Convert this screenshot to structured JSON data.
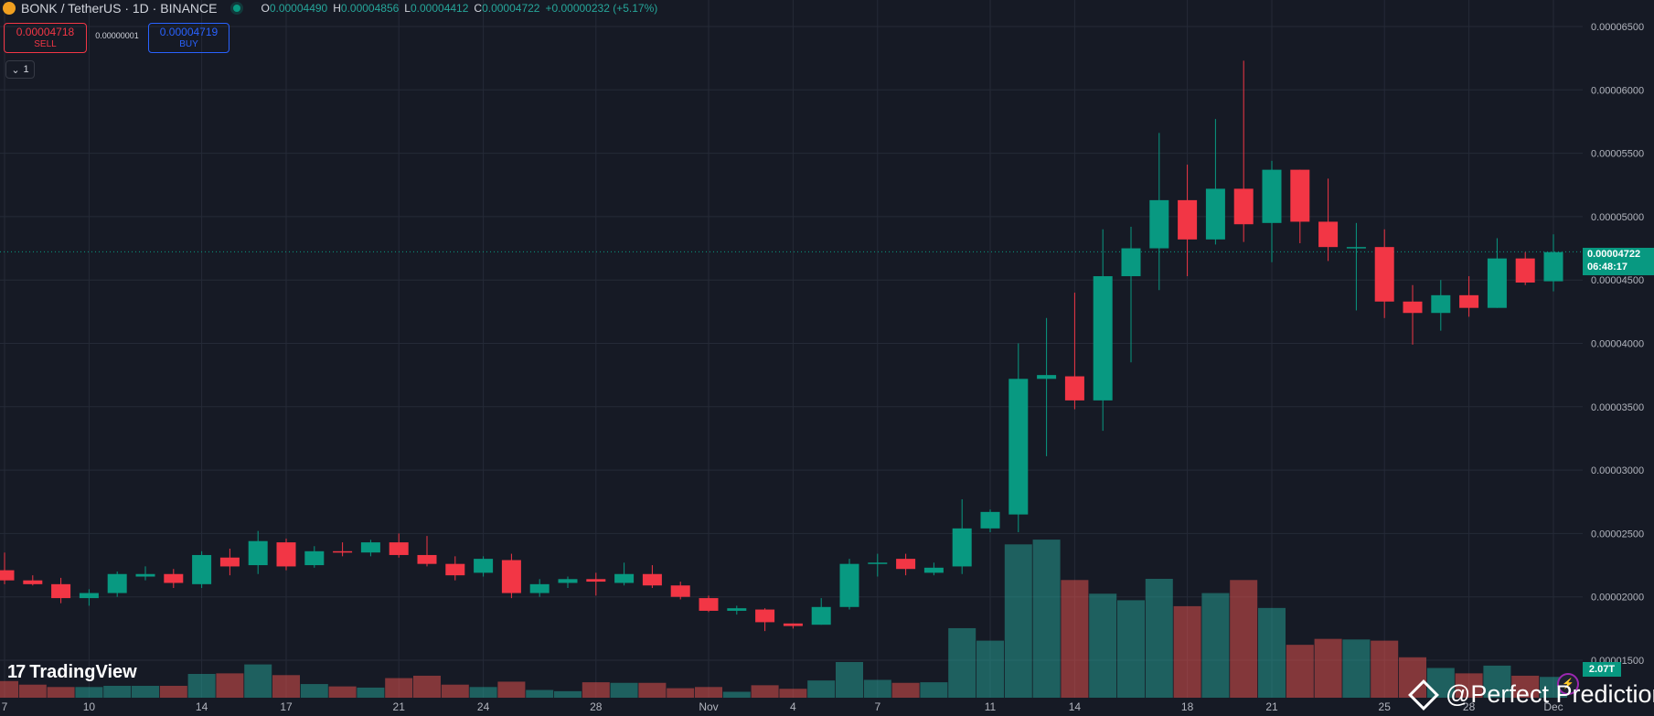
{
  "header": {
    "symbol": "BONK / TetherUS · 1D · BINANCE",
    "coin_icon": "bonk-coin-icon",
    "open_key": "O",
    "open": "0.00004490",
    "high_key": "H",
    "high": "0.00004856",
    "low_key": "L",
    "low": "0.00004412",
    "close_key": "C",
    "close": "0.00004722",
    "change": "+0.00000232 (+5.17%)"
  },
  "trade": {
    "sell_price": "0.00004718",
    "sell_label": "SELL",
    "spread": "0.00000001",
    "buy_price": "0.00004719",
    "buy_label": "BUY"
  },
  "collapse_label": "1",
  "brand": {
    "logo_mark": "17",
    "name": "TradingView"
  },
  "watermark": "@Perfect Prediction",
  "last_price": {
    "price": "0.00004722",
    "countdown": "06:48:17"
  },
  "volume_tag": "2.07T",
  "colors": {
    "up": "#089981",
    "down": "#f23645",
    "background": "#161a25",
    "grid": "#252a37"
  },
  "chart_data": {
    "type": "candlestick",
    "y_axis_ticks": [
      "0.00006500",
      "0.00006000",
      "0.00005500",
      "0.00005000",
      "0.00004500",
      "0.00004000",
      "0.00003500",
      "0.00003000",
      "0.00002500",
      "0.00002000",
      "0.00001500"
    ],
    "ylim": [
      1.33e-05,
      6.7e-05
    ],
    "x_tick_labels": [
      "7",
      "10",
      "14",
      "17",
      "21",
      "24",
      "28",
      "Nov",
      "4",
      "7",
      "11",
      "14",
      "18",
      "21",
      "25",
      "28",
      "Dec"
    ],
    "candles": [
      {
        "o": 2.21e-05,
        "h": 2.35e-05,
        "l": 2.1e-05,
        "c": 2.13e-05,
        "v": 0.28
      },
      {
        "o": 2.13e-05,
        "h": 2.17e-05,
        "l": 2.09e-05,
        "c": 2.1e-05,
        "v": 0.22
      },
      {
        "o": 2.1e-05,
        "h": 2.15e-05,
        "l": 1.95e-05,
        "c": 1.99e-05,
        "v": 0.18
      },
      {
        "o": 1.99e-05,
        "h": 2.06e-05,
        "l": 1.93e-05,
        "c": 2.03e-05,
        "v": 0.18
      },
      {
        "o": 2.03e-05,
        "h": 2.2e-05,
        "l": 2e-05,
        "c": 2.18e-05,
        "v": 0.2
      },
      {
        "o": 2.16e-05,
        "h": 2.24e-05,
        "l": 2.13e-05,
        "c": 2.18e-05,
        "v": 0.2
      },
      {
        "o": 2.18e-05,
        "h": 2.22e-05,
        "l": 2.07e-05,
        "c": 2.11e-05,
        "v": 0.2
      },
      {
        "o": 2.1e-05,
        "h": 2.36e-05,
        "l": 2.07e-05,
        "c": 2.33e-05,
        "v": 0.4
      },
      {
        "o": 2.31e-05,
        "h": 2.38e-05,
        "l": 2.17e-05,
        "c": 2.24e-05,
        "v": 0.41
      },
      {
        "o": 2.25e-05,
        "h": 2.52e-05,
        "l": 2.18e-05,
        "c": 2.44e-05,
        "v": 0.56
      },
      {
        "o": 2.43e-05,
        "h": 2.46e-05,
        "l": 2.21e-05,
        "c": 2.24e-05,
        "v": 0.38
      },
      {
        "o": 2.25e-05,
        "h": 2.4e-05,
        "l": 2.23e-05,
        "c": 2.36e-05,
        "v": 0.23
      },
      {
        "o": 2.36e-05,
        "h": 2.43e-05,
        "l": 2.32e-05,
        "c": 2.35e-05,
        "v": 0.19
      },
      {
        "o": 2.35e-05,
        "h": 2.45e-05,
        "l": 2.32e-05,
        "c": 2.43e-05,
        "v": 0.17
      },
      {
        "o": 2.43e-05,
        "h": 2.5e-05,
        "l": 2.31e-05,
        "c": 2.33e-05,
        "v": 0.33
      },
      {
        "o": 2.33e-05,
        "h": 2.48e-05,
        "l": 2.24e-05,
        "c": 2.26e-05,
        "v": 0.37
      },
      {
        "o": 2.26e-05,
        "h": 2.32e-05,
        "l": 2.13e-05,
        "c": 2.17e-05,
        "v": 0.22
      },
      {
        "o": 2.19e-05,
        "h": 2.32e-05,
        "l": 2.16e-05,
        "c": 2.3e-05,
        "v": 0.18
      },
      {
        "o": 2.29e-05,
        "h": 2.34e-05,
        "l": 1.99e-05,
        "c": 2.03e-05,
        "v": 0.27
      },
      {
        "o": 2.03e-05,
        "h": 2.14e-05,
        "l": 2e-05,
        "c": 2.1e-05,
        "v": 0.13
      },
      {
        "o": 2.11e-05,
        "h": 2.16e-05,
        "l": 2.07e-05,
        "c": 2.14e-05,
        "v": 0.11
      },
      {
        "o": 2.14e-05,
        "h": 2.19e-05,
        "l": 2.01e-05,
        "c": 2.12e-05,
        "v": 0.26
      },
      {
        "o": 2.11e-05,
        "h": 2.27e-05,
        "l": 2.09e-05,
        "c": 2.18e-05,
        "v": 0.25
      },
      {
        "o": 2.18e-05,
        "h": 2.25e-05,
        "l": 2.07e-05,
        "c": 2.09e-05,
        "v": 0.25
      },
      {
        "o": 2.09e-05,
        "h": 2.12e-05,
        "l": 1.98e-05,
        "c": 2e-05,
        "v": 0.16
      },
      {
        "o": 1.99e-05,
        "h": 2.01e-05,
        "l": 1.88e-05,
        "c": 1.89e-05,
        "v": 0.18
      },
      {
        "o": 1.89e-05,
        "h": 1.93e-05,
        "l": 1.86e-05,
        "c": 1.91e-05,
        "v": 0.1
      },
      {
        "o": 1.9e-05,
        "h": 1.91e-05,
        "l": 1.73e-05,
        "c": 1.8e-05,
        "v": 0.21
      },
      {
        "o": 1.79e-05,
        "h": 1.79e-05,
        "l": 1.75e-05,
        "c": 1.77e-05,
        "v": 0.15
      },
      {
        "o": 1.78e-05,
        "h": 1.99e-05,
        "l": 1.78e-05,
        "c": 1.92e-05,
        "v": 0.29
      },
      {
        "o": 1.92e-05,
        "h": 2.3e-05,
        "l": 1.9e-05,
        "c": 2.26e-05,
        "v": 0.6
      },
      {
        "o": 2.26e-05,
        "h": 2.34e-05,
        "l": 2.16e-05,
        "c": 2.27e-05,
        "v": 0.3
      },
      {
        "o": 2.3e-05,
        "h": 2.34e-05,
        "l": 2.17e-05,
        "c": 2.22e-05,
        "v": 0.25
      },
      {
        "o": 2.19e-05,
        "h": 2.27e-05,
        "l": 2.17e-05,
        "c": 2.23e-05,
        "v": 0.26
      },
      {
        "o": 2.24e-05,
        "h": 2.77e-05,
        "l": 2.18e-05,
        "c": 2.54e-05,
        "v": 1.17
      },
      {
        "o": 2.54e-05,
        "h": 2.69e-05,
        "l": 2.51e-05,
        "c": 2.67e-05,
        "v": 0.96
      },
      {
        "o": 2.65e-05,
        "h": 4e-05,
        "l": 2.51e-05,
        "c": 3.72e-05,
        "v": 2.58
      },
      {
        "o": 3.72e-05,
        "h": 4.2e-05,
        "l": 3.11e-05,
        "c": 3.75e-05,
        "v": 2.66
      },
      {
        "o": 3.74e-05,
        "h": 4.4e-05,
        "l": 3.48e-05,
        "c": 3.55e-05,
        "v": 1.98
      },
      {
        "o": 3.55e-05,
        "h": 4.9e-05,
        "l": 3.31e-05,
        "c": 4.53e-05,
        "v": 1.75
      },
      {
        "o": 4.53e-05,
        "h": 4.92e-05,
        "l": 3.85e-05,
        "c": 4.75e-05,
        "v": 1.64
      },
      {
        "o": 4.75e-05,
        "h": 5.66e-05,
        "l": 4.42e-05,
        "c": 5.13e-05,
        "v": 2.0
      },
      {
        "o": 5.13e-05,
        "h": 5.41e-05,
        "l": 4.53e-05,
        "c": 4.82e-05,
        "v": 1.54
      },
      {
        "o": 4.82e-05,
        "h": 5.77e-05,
        "l": 4.78e-05,
        "c": 5.22e-05,
        "v": 1.76
      },
      {
        "o": 5.22e-05,
        "h": 6.23e-05,
        "l": 4.8e-05,
        "c": 4.94e-05,
        "v": 1.98
      },
      {
        "o": 4.95e-05,
        "h": 5.44e-05,
        "l": 4.64e-05,
        "c": 5.37e-05,
        "v": 1.51
      },
      {
        "o": 5.37e-05,
        "h": 5.37e-05,
        "l": 4.79e-05,
        "c": 4.96e-05,
        "v": 0.89
      },
      {
        "o": 4.96e-05,
        "h": 5.3e-05,
        "l": 4.65e-05,
        "c": 4.76e-05,
        "v": 0.99
      },
      {
        "o": 4.76e-05,
        "h": 4.95e-05,
        "l": 4.26e-05,
        "c": 4.76e-05,
        "v": 0.98
      },
      {
        "o": 4.76e-05,
        "h": 4.9e-05,
        "l": 4.2e-05,
        "c": 4.33e-05,
        "v": 0.96
      },
      {
        "o": 4.33e-05,
        "h": 4.46e-05,
        "l": 3.99e-05,
        "c": 4.24e-05,
        "v": 0.68
      },
      {
        "o": 4.24e-05,
        "h": 4.5e-05,
        "l": 4.1e-05,
        "c": 4.38e-05,
        "v": 0.5
      },
      {
        "o": 4.38e-05,
        "h": 4.53e-05,
        "l": 4.21e-05,
        "c": 4.28e-05,
        "v": 0.41
      },
      {
        "o": 4.28e-05,
        "h": 4.83e-05,
        "l": 4.28e-05,
        "c": 4.67e-05,
        "v": 0.54
      },
      {
        "o": 4.67e-05,
        "h": 4.72e-05,
        "l": 4.46e-05,
        "c": 4.48e-05,
        "v": 0.37
      },
      {
        "o": 4.49e-05,
        "h": 4.86e-05,
        "l": 4.41e-05,
        "c": 4.72e-05,
        "v": 0.35
      }
    ],
    "x_tick_candle_index": [
      0,
      3,
      7,
      10,
      14,
      17,
      21,
      25,
      28,
      31,
      35,
      38,
      42,
      45,
      49,
      52,
      55
    ],
    "last_price_line": 4.722e-05,
    "grid": true
  }
}
